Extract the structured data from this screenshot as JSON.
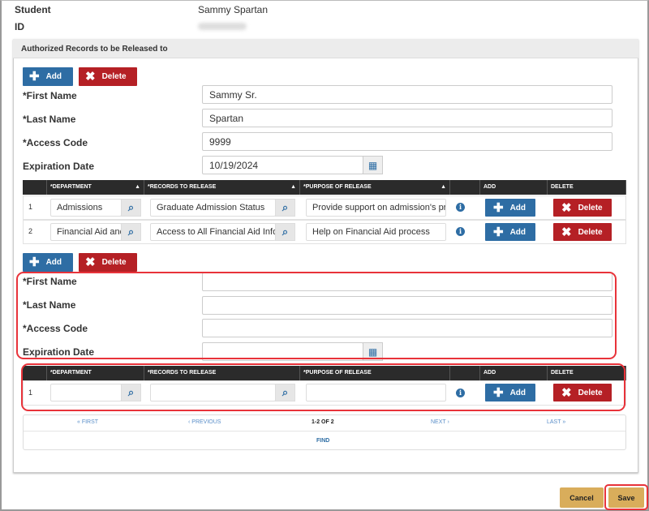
{
  "student": {
    "label": "Student",
    "value": "Sammy Spartan",
    "id_label": "ID"
  },
  "panel": {
    "title": "Authorized Records to be Released to"
  },
  "buttons": {
    "add": "Add",
    "delete": "Delete",
    "cancel": "Cancel",
    "save": "Save"
  },
  "form1": {
    "first_name_label": "*First Name",
    "first_name": "Sammy Sr.",
    "last_name_label": "*Last Name",
    "last_name": "Spartan",
    "access_code_label": "*Access Code",
    "access_code": "9999",
    "expiration_label": "Expiration Date",
    "expiration": "10/19/2024"
  },
  "table": {
    "headers": {
      "department": "*DEPARTMENT",
      "records": "*RECORDS TO RELEASE",
      "purpose": "*PURPOSE OF RELEASE",
      "add": "ADD",
      "delete": "DELETE"
    }
  },
  "rows1": [
    {
      "num": "1",
      "department": "Admissions",
      "records": "Graduate Admission Status",
      "purpose": "Provide support on admission's process"
    },
    {
      "num": "2",
      "department": "Financial Aid and Scholarships",
      "records": "Access to All Financial Aid Information",
      "purpose": "Help on Financial Aid process"
    }
  ],
  "form2": {
    "first_name_label": "*First Name",
    "first_name": "",
    "last_name_label": "*Last Name",
    "last_name": "",
    "access_code_label": "*Access Code",
    "access_code": "",
    "expiration_label": "Expiration Date",
    "expiration": ""
  },
  "rows2": [
    {
      "num": "1",
      "department": "",
      "records": "",
      "purpose": ""
    }
  ],
  "pagination": {
    "first": "« FIRST",
    "previous": "‹ PREVIOUS",
    "status": "1-2 OF 2",
    "next": "NEXT ›",
    "last": "LAST »",
    "find": "FIND"
  },
  "colors": {
    "add": "#2e6da4",
    "delete": "#b52025",
    "highlight": "#e8333a",
    "gold": "#d9ad5b"
  }
}
